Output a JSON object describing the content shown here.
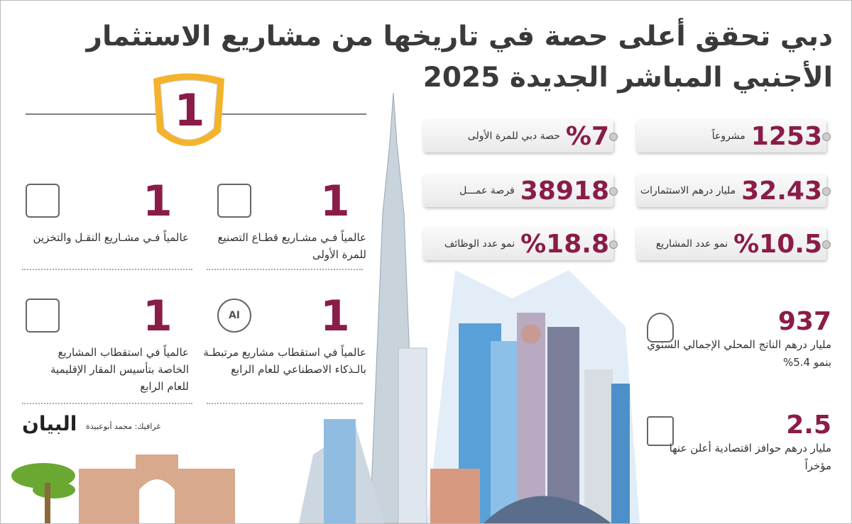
{
  "header": {
    "title": "دبي تحقق أعلى حصة في تاريخها من مشاريع الاستثمار الأجنبي المباشر الجديدة 2025"
  },
  "badge": "1",
  "stats": [
    {
      "value": "1253",
      "label": "مشروعاً"
    },
    {
      "value": "%7",
      "label": "حصة دبي للمرة الأولى"
    },
    {
      "value": "32.43",
      "label": "مليار درهم الاستثمارات"
    },
    {
      "value": "38918",
      "label": "فرصة عمـــل"
    },
    {
      "value": "%10.5",
      "label": "نمو عدد المشاريع"
    },
    {
      "value": "%18.8",
      "label": "نمو عدد الوظائف"
    }
  ],
  "rankings": [
    {
      "rank": "1",
      "text": "عالمياً فـي مشـاريع النقـل والتخزين"
    },
    {
      "rank": "1",
      "text": "عالمياً فـي مشـاريع قطـاع التصنيع للمرة الأولى"
    },
    {
      "rank": "1",
      "text": "عالمياً في استقطاب المشاريع الخاصة بتأسيس المقار الإقليمية للعام الرابع"
    },
    {
      "rank": "1",
      "text": "عالمياً في استقطاب مشاريع مرتبطـة بالـذكاء الاصطناعي للعام الرابع",
      "icon_label": "AI"
    }
  ],
  "economy": [
    {
      "value": "937",
      "text": "مليار درهم الناتج المحلي الإجمالي السنوي بنمو 5.4%"
    },
    {
      "value": "2.5",
      "text": "مليار درهم حوافز اقتصادية أعلن عنها مؤخراً"
    }
  ],
  "credit": "غرافيك: محمد أبوعبيدة",
  "logo": "البيان"
}
